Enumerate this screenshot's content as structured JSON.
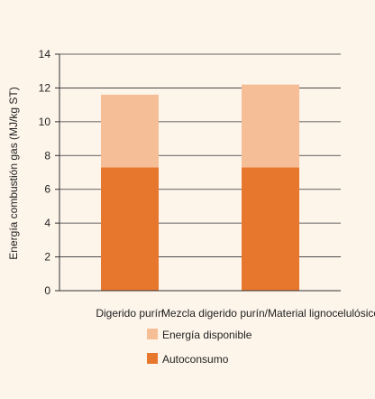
{
  "chart_data": {
    "type": "bar",
    "stacked": true,
    "title": "",
    "xlabel": "",
    "ylabel": "Energía combustión gas (MJ/kg ST)",
    "ylim": [
      0,
      14
    ],
    "yticks": [
      0,
      2,
      4,
      6,
      8,
      10,
      12,
      14
    ],
    "grid": true,
    "legend_position": "bottom-center",
    "categories": [
      "Digerido purín",
      "Mezcla digerido purín/Material lignocelulósico"
    ],
    "series": [
      {
        "name": "Autoconsumo",
        "values": [
          7.3,
          7.3
        ],
        "color": "#e8772e"
      },
      {
        "name": "Energía disponible",
        "values": [
          4.3,
          4.9
        ],
        "color": "#f5be96"
      }
    ],
    "legend_order": [
      "Energía disponible",
      "Autoconsumo"
    ]
  },
  "colors": {
    "background": "#fdf4ea",
    "grid": "#333333"
  }
}
